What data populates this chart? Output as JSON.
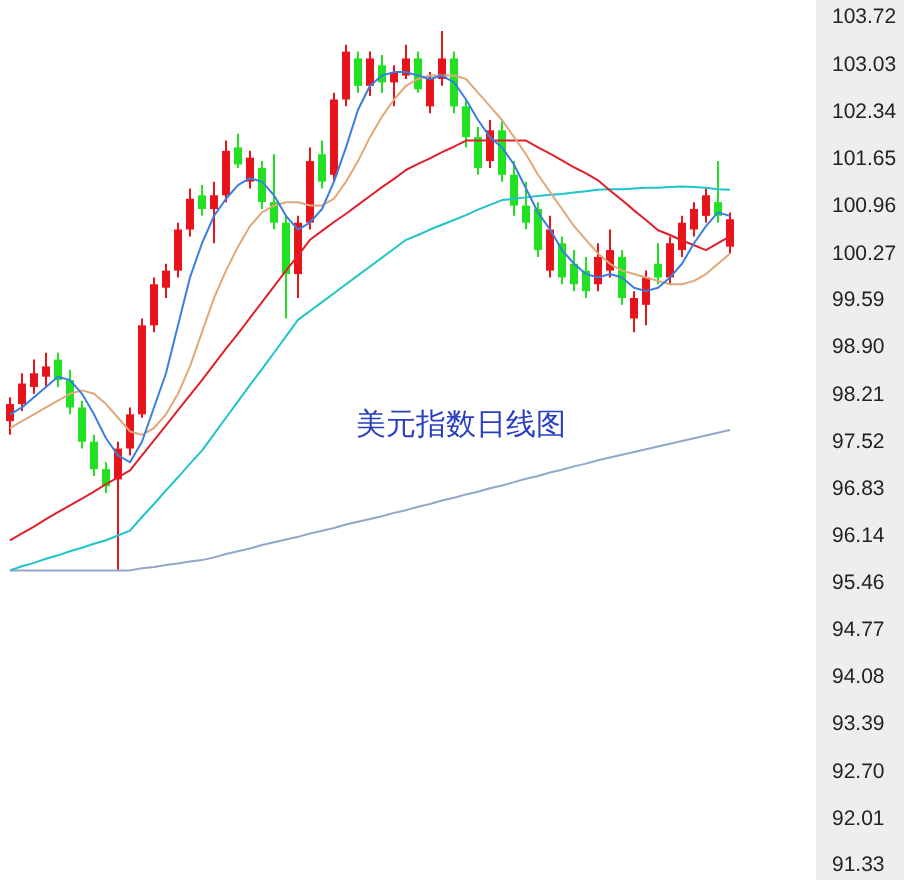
{
  "chart_data": {
    "type": "candlestick",
    "title": "美元指数日线图",
    "tick_labels": "y",
    "categories": [
      null,
      null,
      null,
      null,
      null,
      null,
      null,
      null,
      null,
      null,
      null,
      null,
      null,
      null,
      null,
      null,
      null,
      null,
      null,
      null,
      null,
      null,
      null,
      null,
      null,
      null,
      null,
      null,
      null,
      null,
      null,
      null,
      null,
      null,
      null,
      null,
      null,
      null,
      null,
      null,
      null,
      null,
      null,
      null,
      null,
      null,
      null,
      null,
      null,
      null,
      null,
      null,
      null,
      null,
      null,
      null,
      null,
      null,
      null,
      null,
      null
    ],
    "ohlc": [
      [
        97.8,
        98.15,
        97.6,
        98.05
      ],
      [
        98.05,
        98.5,
        97.95,
        98.35
      ],
      [
        98.3,
        98.7,
        98.2,
        98.5
      ],
      [
        98.45,
        98.8,
        98.3,
        98.6
      ],
      [
        98.7,
        98.8,
        98.3,
        98.4
      ],
      [
        98.4,
        98.55,
        97.9,
        98.0
      ],
      [
        98.0,
        98.1,
        97.4,
        97.5
      ],
      [
        97.5,
        97.6,
        97.0,
        97.1
      ],
      [
        97.1,
        97.2,
        96.75,
        96.85
      ],
      [
        96.95,
        97.5,
        95.62,
        97.4
      ],
      [
        97.4,
        98.0,
        97.3,
        97.9
      ],
      [
        97.9,
        99.3,
        97.85,
        99.2
      ],
      [
        99.2,
        99.9,
        99.1,
        99.8
      ],
      [
        99.75,
        100.1,
        99.6,
        100.0
      ],
      [
        100.0,
        100.7,
        99.9,
        100.6
      ],
      [
        100.6,
        101.2,
        100.5,
        101.05
      ],
      [
        101.1,
        101.25,
        100.8,
        100.9
      ],
      [
        100.9,
        101.3,
        100.4,
        101.1
      ],
      [
        101.1,
        101.9,
        101.0,
        101.75
      ],
      [
        101.8,
        102.0,
        101.5,
        101.55
      ],
      [
        101.3,
        101.75,
        101.2,
        101.65
      ],
      [
        101.5,
        101.6,
        100.9,
        101.0
      ],
      [
        101.0,
        101.7,
        100.6,
        100.7
      ],
      [
        100.7,
        100.8,
        99.3,
        99.95
      ],
      [
        99.95,
        100.8,
        99.6,
        100.7
      ],
      [
        100.7,
        101.8,
        100.6,
        101.6
      ],
      [
        101.7,
        101.9,
        101.2,
        101.3
      ],
      [
        101.4,
        102.6,
        101.3,
        102.5
      ],
      [
        102.5,
        103.3,
        102.4,
        103.2
      ],
      [
        103.1,
        103.2,
        102.6,
        102.7
      ],
      [
        102.7,
        103.2,
        102.55,
        103.1
      ],
      [
        103.0,
        103.15,
        102.6,
        102.75
      ],
      [
        102.75,
        103.0,
        102.4,
        102.9
      ],
      [
        102.85,
        103.3,
        102.8,
        103.1
      ],
      [
        103.1,
        103.2,
        102.6,
        102.65
      ],
      [
        102.4,
        102.9,
        102.3,
        102.8
      ],
      [
        102.8,
        103.5,
        102.7,
        103.1
      ],
      [
        103.1,
        103.2,
        102.3,
        102.4
      ],
      [
        102.4,
        102.5,
        101.8,
        101.95
      ],
      [
        101.95,
        102.1,
        101.4,
        101.5
      ],
      [
        101.6,
        102.2,
        101.5,
        102.05
      ],
      [
        102.05,
        102.2,
        101.3,
        101.4
      ],
      [
        101.4,
        101.6,
        100.8,
        100.95
      ],
      [
        100.95,
        101.3,
        100.6,
        100.7
      ],
      [
        100.9,
        101.0,
        100.2,
        100.3
      ],
      [
        100.0,
        100.8,
        99.9,
        100.6
      ],
      [
        100.4,
        100.5,
        99.8,
        99.9
      ],
      [
        100.1,
        100.3,
        99.7,
        99.8
      ],
      [
        100.0,
        100.2,
        99.6,
        99.7
      ],
      [
        99.8,
        100.4,
        99.7,
        100.2
      ],
      [
        100.0,
        100.6,
        99.9,
        100.3
      ],
      [
        100.2,
        100.3,
        99.5,
        99.6
      ],
      [
        99.3,
        99.7,
        99.1,
        99.6
      ],
      [
        99.5,
        100.0,
        99.2,
        99.9
      ],
      [
        100.1,
        100.4,
        99.8,
        99.9
      ],
      [
        99.9,
        100.5,
        99.8,
        100.4
      ],
      [
        100.3,
        100.8,
        100.2,
        100.7
      ],
      [
        100.6,
        101.0,
        100.5,
        100.9
      ],
      [
        100.8,
        101.2,
        100.7,
        101.1
      ],
      [
        101.0,
        101.6,
        100.7,
        100.8
      ],
      [
        100.35,
        100.85,
        100.25,
        100.75
      ]
    ],
    "series": [
      {
        "type": "line",
        "color": "#8fa8c8",
        "values": [
          95.62,
          95.62,
          95.62,
          95.62,
          95.62,
          95.62,
          95.62,
          95.62,
          95.62,
          95.62,
          95.62,
          95.65,
          95.67,
          95.7,
          95.72,
          95.75,
          95.77,
          95.81,
          95.86,
          95.9,
          95.94,
          95.99,
          96.03,
          96.07,
          96.11,
          96.16,
          96.2,
          96.24,
          96.29,
          96.33,
          96.37,
          96.41,
          96.46,
          96.5,
          96.55,
          96.59,
          96.64,
          96.68,
          96.73,
          96.77,
          96.82,
          96.86,
          96.91,
          96.96,
          97.0,
          97.05,
          97.09,
          97.14,
          97.18,
          97.23,
          97.27,
          97.31,
          97.35,
          97.39,
          97.43,
          97.47,
          97.51,
          97.55,
          97.59,
          97.63,
          97.67
        ]
      },
      {
        "type": "line",
        "color": "#1fc4c8",
        "values": [
          95.62,
          95.68,
          95.73,
          95.79,
          95.84,
          95.9,
          95.95,
          96.01,
          96.06,
          96.13,
          96.2,
          96.4,
          96.59,
          96.79,
          96.98,
          97.18,
          97.37,
          97.61,
          97.85,
          98.09,
          98.33,
          98.56,
          98.8,
          99.04,
          99.28,
          99.41,
          99.54,
          99.67,
          99.8,
          99.93,
          100.06,
          100.19,
          100.32,
          100.45,
          100.52,
          100.6,
          100.67,
          100.74,
          100.81,
          100.89,
          100.96,
          101.03,
          101.05,
          101.07,
          101.09,
          101.11,
          101.12,
          101.14,
          101.16,
          101.18,
          101.19,
          101.19,
          101.2,
          101.21,
          101.21,
          101.22,
          101.23,
          101.22,
          101.21,
          101.19,
          101.18
        ]
      },
      {
        "type": "line",
        "color": "#e0202a",
        "values": [
          96.06,
          96.16,
          96.26,
          96.37,
          96.47,
          96.57,
          96.67,
          96.77,
          96.88,
          96.98,
          97.08,
          97.3,
          97.52,
          97.74,
          97.96,
          98.18,
          98.4,
          98.63,
          98.86,
          99.08,
          99.31,
          99.54,
          99.77,
          100.0,
          100.22,
          100.45,
          100.58,
          100.71,
          100.83,
          100.96,
          101.09,
          101.22,
          101.34,
          101.47,
          101.56,
          101.64,
          101.73,
          101.81,
          101.9,
          101.9,
          101.9,
          101.9,
          101.9,
          101.9,
          101.8,
          101.71,
          101.61,
          101.51,
          101.42,
          101.32,
          101.17,
          101.03,
          100.88,
          100.74,
          100.59,
          100.52,
          100.44,
          100.37,
          100.3,
          100.4,
          100.5
        ]
      },
      {
        "type": "line",
        "color": "#e0a878",
        "values": [
          97.7,
          97.8,
          97.9,
          98.0,
          98.1,
          98.2,
          98.25,
          98.2,
          98.05,
          97.85,
          97.65,
          97.6,
          97.7,
          97.9,
          98.2,
          98.6,
          99.1,
          99.6,
          100.0,
          100.35,
          100.65,
          100.85,
          100.95,
          101.0,
          101.0,
          100.95,
          100.95,
          101.05,
          101.3,
          101.6,
          101.95,
          102.25,
          102.5,
          102.7,
          102.8,
          102.85,
          102.85,
          102.85,
          102.8,
          102.6,
          102.4,
          102.2,
          101.95,
          101.7,
          101.4,
          101.15,
          100.9,
          100.65,
          100.45,
          100.25,
          100.1,
          100.0,
          99.95,
          99.9,
          99.85,
          99.8,
          99.8,
          99.85,
          99.95,
          100.1,
          100.25
        ]
      },
      {
        "type": "line",
        "color": "#3a7ee0",
        "values": [
          97.9,
          98.0,
          98.15,
          98.3,
          98.45,
          98.4,
          98.2,
          97.9,
          97.55,
          97.3,
          97.2,
          97.5,
          98.0,
          98.5,
          99.2,
          99.9,
          100.4,
          100.8,
          101.05,
          101.25,
          101.35,
          101.3,
          101.1,
          100.8,
          100.6,
          100.7,
          100.9,
          101.3,
          101.8,
          102.35,
          102.7,
          102.85,
          102.9,
          102.9,
          102.85,
          102.8,
          102.85,
          102.75,
          102.5,
          102.2,
          101.95,
          101.8,
          101.55,
          101.2,
          100.85,
          100.6,
          100.3,
          100.1,
          99.95,
          99.9,
          99.95,
          99.9,
          99.75,
          99.7,
          99.75,
          99.9,
          100.1,
          100.4,
          100.65,
          100.85,
          100.8
        ]
      }
    ],
    "ylim": [
      91.33,
      103.72
    ],
    "yticks": [
      103.72,
      103.03,
      102.34,
      101.65,
      100.96,
      100.27,
      99.59,
      {
        "value": 98.9,
        "label": "98.90"
      },
      98.21,
      97.52,
      96.83,
      96.14,
      95.46,
      94.77,
      94.08,
      93.39,
      {
        "value": 92.7,
        "label": "92.70"
      },
      92.01,
      91.33
    ]
  }
}
